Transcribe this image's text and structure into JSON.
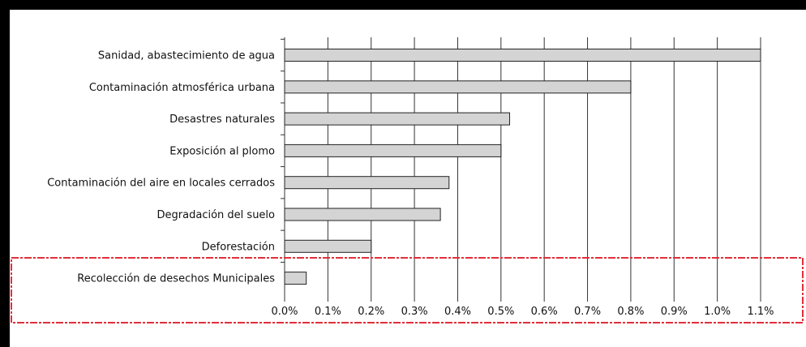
{
  "chart_data": {
    "type": "bar",
    "orientation": "horizontal",
    "title": "",
    "xlabel": "",
    "ylabel": "",
    "categories": [
      "Sanidad, abastecimiento de agua",
      "Contaminación atmosférica urbana",
      "Desastres naturales",
      "Exposición al plomo",
      "Contaminación del aire en locales cerrados",
      "Degradación del suelo",
      "Deforestación",
      "Recolección de desechos Municipales"
    ],
    "values": [
      1.1,
      0.8,
      0.52,
      0.5,
      0.38,
      0.36,
      0.2,
      0.05
    ],
    "unit": "%",
    "xlim": [
      0,
      1.1
    ],
    "xticks": [
      "0.0%",
      "0.1%",
      "0.2%",
      "0.3%",
      "0.4%",
      "0.5%",
      "0.6%",
      "0.7%",
      "0.8%",
      "0.9%",
      "1.0%",
      "1.1%"
    ],
    "grid": "vertical",
    "bar_color": "#d4d4d4",
    "highlight_color": "#e0303a",
    "highlighted_category": "Recolección de desechos Municipales"
  }
}
